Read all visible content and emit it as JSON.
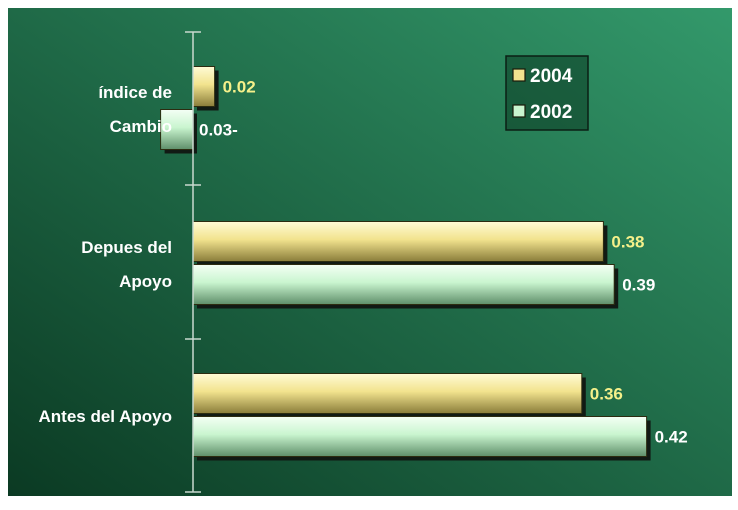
{
  "colors": {
    "bg_dark": "#0b3a23",
    "bg_light": "#33996b",
    "series_2004": "#f2e38e",
    "series_2002": "#c9f5cf",
    "label_2004": "#f5f08a",
    "label_2002": "#ffffff",
    "axis": "#c9d9cf"
  },
  "chart_data": {
    "type": "bar",
    "orientation": "horizontal",
    "categories": [
      "índice de Cambio",
      "Depues del Apoyo",
      "Antes del Apoyo"
    ],
    "category_lines": [
      [
        "índice de",
        "Cambio"
      ],
      [
        "Depues del",
        "Apoyo"
      ],
      [
        "Antes del Apoyo"
      ]
    ],
    "series": [
      {
        "name": "2004",
        "values": [
          0.02,
          0.38,
          0.36
        ],
        "value_labels": [
          "0.02",
          "0.38",
          "0.36"
        ]
      },
      {
        "name": "2002",
        "values": [
          -0.03,
          0.39,
          0.42
        ],
        "value_labels": [
          "0.03-",
          "0.39",
          "0.42"
        ]
      }
    ],
    "legend": {
      "position": "top-right",
      "entries": [
        "2004",
        "2002"
      ]
    },
    "xlim": [
      -0.03,
      0.42
    ],
    "grid": false
  }
}
